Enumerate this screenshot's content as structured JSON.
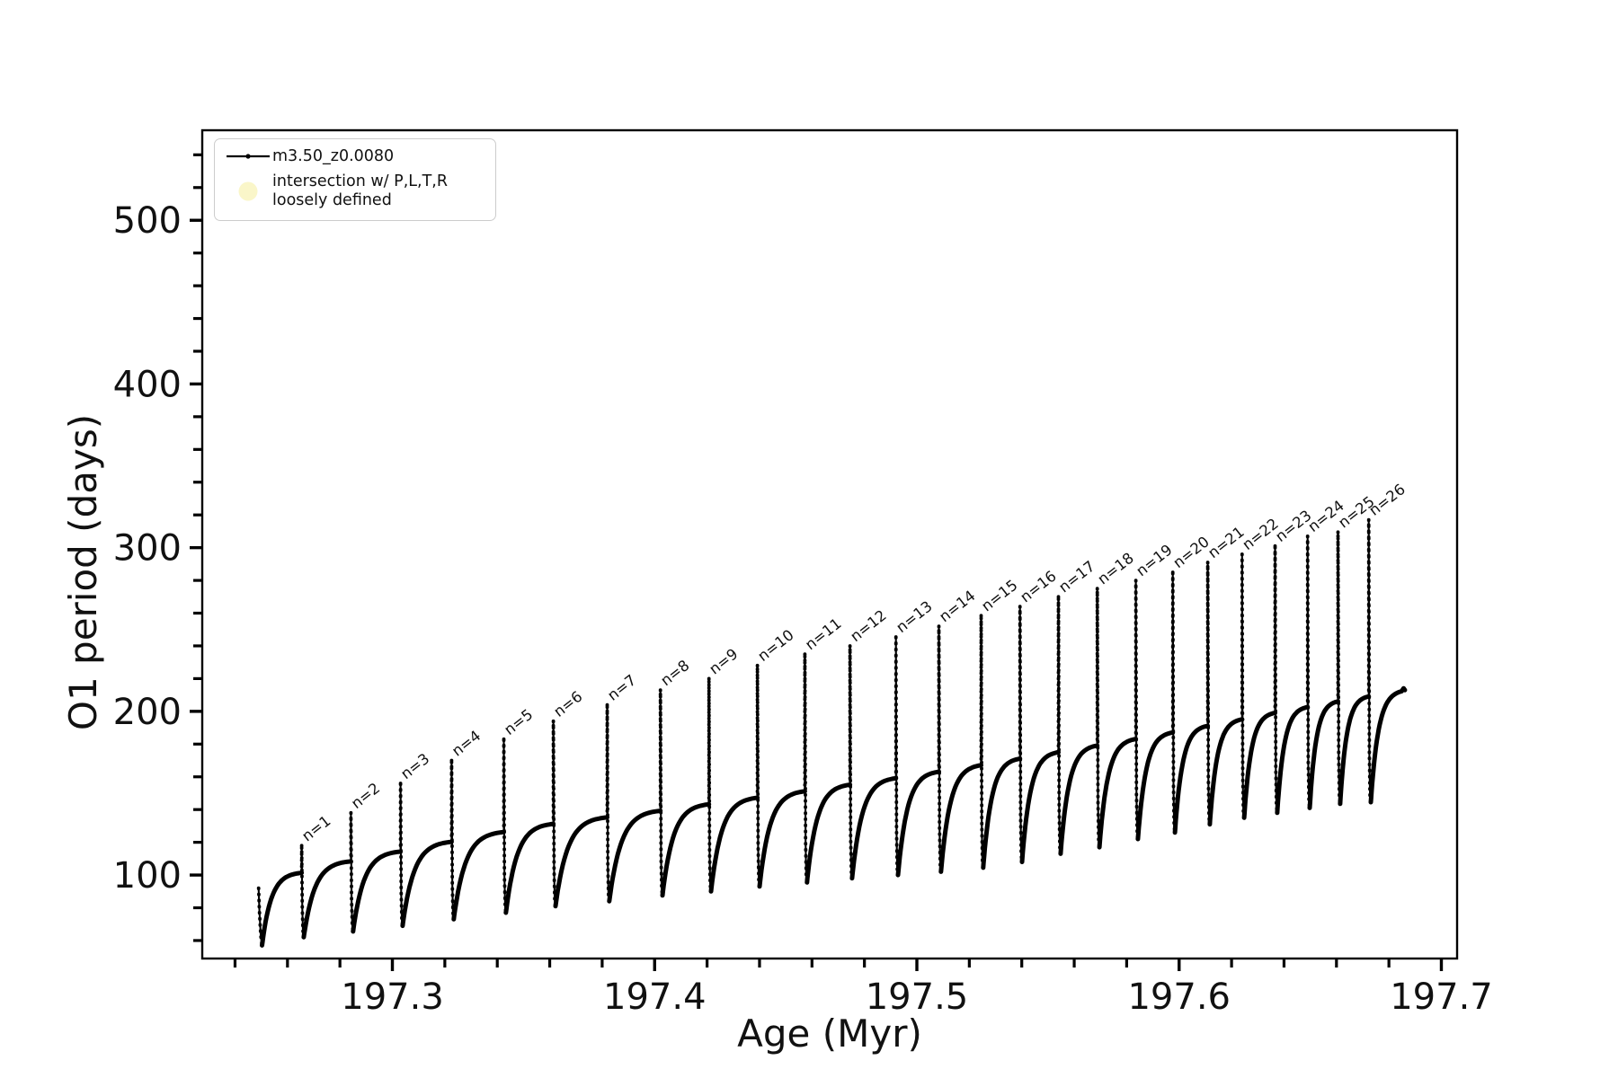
{
  "figure": {
    "background": "#ffffff",
    "line_color": "#000000",
    "text_color": "#111111"
  },
  "legend": {
    "series_label": "m3.50_z0.0080",
    "intersection_label_line1": "intersection w/ P,L,T,R",
    "intersection_label_line2": "loosely defined",
    "series_color": "#000000",
    "intersection_marker_color": "#faf6c9"
  },
  "chart_data": {
    "type": "line",
    "title": "",
    "xlabel": "Age (Myr)",
    "ylabel": "O1 period (days)",
    "series_name": "m3.50_z0.0080",
    "xlim": [
      197.2275,
      197.706
    ],
    "ylim": [
      49,
      555
    ],
    "grid": false,
    "legend_position": "upper left",
    "x_major_ticks": [
      197.3,
      197.4,
      197.5,
      197.6,
      197.7
    ],
    "x_tick_labels": [
      "197.3",
      "197.4",
      "197.5",
      "197.6",
      "197.7"
    ],
    "x_minor_ticks": [
      197.24,
      197.26,
      197.28,
      197.32,
      197.34,
      197.36,
      197.38,
      197.42,
      197.44,
      197.46,
      197.48,
      197.52,
      197.54,
      197.56,
      197.58,
      197.62,
      197.64,
      197.66,
      197.68
    ],
    "y_major_ticks": [
      100,
      200,
      300,
      400,
      500
    ],
    "y_tick_labels": [
      "100",
      "200",
      "300",
      "400",
      "500"
    ],
    "y_minor_ticks": [
      60,
      80,
      120,
      140,
      160,
      180,
      220,
      240,
      260,
      280,
      320,
      340,
      360,
      380,
      420,
      440,
      460,
      480,
      520,
      540
    ],
    "start": {
      "age": 197.249,
      "value": 92,
      "min": 57
    },
    "end": {
      "age": 197.6848,
      "plateau": 213.5
    },
    "pulses": [
      {
        "n": 1,
        "label": "n=1",
        "age": 197.2654,
        "top": 118,
        "plateau_before": 102,
        "min_after": 62
      },
      {
        "n": 2,
        "label": "n=2",
        "age": 197.2842,
        "top": 138,
        "plateau_before": 109,
        "min_after": 65.5
      },
      {
        "n": 3,
        "label": "n=3",
        "age": 197.3031,
        "top": 156,
        "plateau_before": 115,
        "min_after": 69
      },
      {
        "n": 4,
        "label": "n=4",
        "age": 197.3226,
        "top": 170,
        "plateau_before": 121,
        "min_after": 73
      },
      {
        "n": 5,
        "label": "n=5",
        "age": 197.3425,
        "top": 183,
        "plateau_before": 127,
        "min_after": 77
      },
      {
        "n": 6,
        "label": "n=6",
        "age": 197.3614,
        "top": 194,
        "plateau_before": 132,
        "min_after": 81
      },
      {
        "n": 7,
        "label": "n=7",
        "age": 197.3819,
        "top": 204,
        "plateau_before": 136,
        "min_after": 84
      },
      {
        "n": 8,
        "label": "n=8",
        "age": 197.4022,
        "top": 213,
        "plateau_before": 140,
        "min_after": 87.5
      },
      {
        "n": 9,
        "label": "n=9",
        "age": 197.4207,
        "top": 220,
        "plateau_before": 144,
        "min_after": 90
      },
      {
        "n": 10,
        "label": "n=10",
        "age": 197.4392,
        "top": 228,
        "plateau_before": 148,
        "min_after": 93
      },
      {
        "n": 11,
        "label": "n=11",
        "age": 197.4573,
        "top": 235,
        "plateau_before": 152,
        "min_after": 95.5
      },
      {
        "n": 12,
        "label": "n=12",
        "age": 197.4745,
        "top": 240,
        "plateau_before": 156,
        "min_after": 98
      },
      {
        "n": 13,
        "label": "n=13",
        "age": 197.492,
        "top": 245.5,
        "plateau_before": 160,
        "min_after": 100
      },
      {
        "n": 14,
        "label": "n=14",
        "age": 197.5084,
        "top": 252,
        "plateau_before": 164,
        "min_after": 102
      },
      {
        "n": 15,
        "label": "n=15",
        "age": 197.5245,
        "top": 258.5,
        "plateau_before": 168,
        "min_after": 104.5
      },
      {
        "n": 16,
        "label": "n=16",
        "age": 197.5393,
        "top": 264,
        "plateau_before": 172,
        "min_after": 108
      },
      {
        "n": 17,
        "label": "n=17",
        "age": 197.554,
        "top": 270,
        "plateau_before": 176,
        "min_after": 113
      },
      {
        "n": 18,
        "label": "n=18",
        "age": 197.5688,
        "top": 275,
        "plateau_before": 180,
        "min_after": 117
      },
      {
        "n": 19,
        "label": "n=19",
        "age": 197.5835,
        "top": 280,
        "plateau_before": 184,
        "min_after": 122
      },
      {
        "n": 20,
        "label": "n=20",
        "age": 197.5976,
        "top": 285,
        "plateau_before": 188,
        "min_after": 126
      },
      {
        "n": 21,
        "label": "n=21",
        "age": 197.6109,
        "top": 291,
        "plateau_before": 192,
        "min_after": 131
      },
      {
        "n": 22,
        "label": "n=22",
        "age": 197.624,
        "top": 296,
        "plateau_before": 196,
        "min_after": 135
      },
      {
        "n": 23,
        "label": "n=23",
        "age": 197.6366,
        "top": 301,
        "plateau_before": 200,
        "min_after": 138
      },
      {
        "n": 24,
        "label": "n=24",
        "age": 197.649,
        "top": 307,
        "plateau_before": 203.5,
        "min_after": 141
      },
      {
        "n": 25,
        "label": "n=25",
        "age": 197.6606,
        "top": 309.5,
        "plateau_before": 207,
        "min_after": 143.5
      },
      {
        "n": 26,
        "label": "n=26",
        "age": 197.6723,
        "top": 317,
        "plateau_before": 210,
        "min_after": 144.5
      }
    ]
  }
}
